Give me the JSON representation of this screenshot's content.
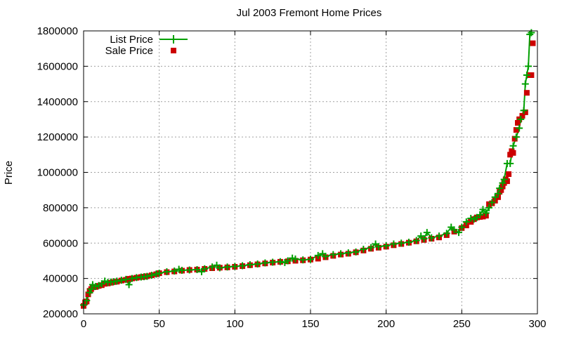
{
  "chart_data": {
    "type": "line",
    "title": "Jul 2003 Fremont Home Prices",
    "xlabel": "",
    "ylabel": "Price",
    "xlim": [
      0,
      300
    ],
    "ylim": [
      200000,
      1800000
    ],
    "xticks": [
      "0",
      "50",
      "100",
      "150",
      "200",
      "250",
      "300"
    ],
    "yticks": [
      "200000",
      "400000",
      "600000",
      "800000",
      "1000000",
      "1200000",
      "1400000",
      "1600000",
      "1800000"
    ],
    "grid": true,
    "legend_position": "top-left",
    "series": [
      {
        "name": "List Price",
        "style": "line with plus markers",
        "color": "#00a000",
        "points": [
          [
            0,
            250000
          ],
          [
            2,
            275000
          ],
          [
            4,
            320000
          ],
          [
            5,
            340000
          ],
          [
            6,
            365000
          ],
          [
            8,
            355000
          ],
          [
            10,
            360000
          ],
          [
            12,
            370000
          ],
          [
            14,
            385000
          ],
          [
            16,
            378000
          ],
          [
            18,
            380000
          ],
          [
            20,
            382000
          ],
          [
            22,
            385000
          ],
          [
            25,
            390000
          ],
          [
            28,
            395000
          ],
          [
            30,
            365000
          ],
          [
            32,
            400000
          ],
          [
            35,
            405000
          ],
          [
            38,
            408000
          ],
          [
            40,
            410000
          ],
          [
            42,
            412000
          ],
          [
            45,
            418000
          ],
          [
            48,
            425000
          ],
          [
            50,
            430000
          ],
          [
            55,
            438000
          ],
          [
            60,
            442000
          ],
          [
            63,
            452000
          ],
          [
            65,
            446000
          ],
          [
            70,
            448000
          ],
          [
            75,
            450000
          ],
          [
            78,
            438000
          ],
          [
            80,
            455000
          ],
          [
            85,
            465000
          ],
          [
            88,
            475000
          ],
          [
            90,
            460000
          ],
          [
            95,
            465000
          ],
          [
            100,
            468000
          ],
          [
            105,
            472000
          ],
          [
            110,
            478000
          ],
          [
            115,
            482000
          ],
          [
            120,
            488000
          ],
          [
            125,
            492000
          ],
          [
            130,
            495000
          ],
          [
            133,
            490000
          ],
          [
            135,
            500000
          ],
          [
            138,
            515000
          ],
          [
            140,
            510000
          ],
          [
            145,
            505000
          ],
          [
            150,
            508000
          ],
          [
            155,
            530000
          ],
          [
            158,
            540000
          ],
          [
            160,
            525000
          ],
          [
            165,
            535000
          ],
          [
            170,
            540000
          ],
          [
            175,
            545000
          ],
          [
            180,
            550000
          ],
          [
            185,
            565000
          ],
          [
            190,
            575000
          ],
          [
            193,
            595000
          ],
          [
            195,
            580000
          ],
          [
            200,
            585000
          ],
          [
            205,
            595000
          ],
          [
            210,
            600000
          ],
          [
            215,
            605000
          ],
          [
            220,
            615000
          ],
          [
            223,
            640000
          ],
          [
            225,
            625000
          ],
          [
            227,
            660000
          ],
          [
            230,
            630000
          ],
          [
            235,
            640000
          ],
          [
            240,
            655000
          ],
          [
            243,
            690000
          ],
          [
            245,
            675000
          ],
          [
            248,
            660000
          ],
          [
            250,
            690000
          ],
          [
            253,
            720000
          ],
          [
            256,
            740000
          ],
          [
            258,
            735000
          ],
          [
            260,
            745000
          ],
          [
            262,
            760000
          ],
          [
            264,
            790000
          ],
          [
            266,
            770000
          ],
          [
            268,
            800000
          ],
          [
            270,
            830000
          ],
          [
            272,
            860000
          ],
          [
            274,
            880000
          ],
          [
            275,
            910000
          ],
          [
            277,
            940000
          ],
          [
            278,
            960000
          ],
          [
            280,
            1050000
          ],
          [
            282,
            1050000
          ],
          [
            284,
            1150000
          ],
          [
            286,
            1200000
          ],
          [
            288,
            1250000
          ],
          [
            289,
            1300000
          ],
          [
            291,
            1350000
          ],
          [
            292,
            1500000
          ],
          [
            293,
            1550000
          ],
          [
            294,
            1600000
          ],
          [
            295,
            1780000
          ],
          [
            296,
            1790000
          ]
        ]
      },
      {
        "name": "Sale Price",
        "style": "square markers",
        "color": "#cc0000",
        "points": [
          [
            0,
            245000
          ],
          [
            1,
            265000
          ],
          [
            2,
            270000
          ],
          [
            3,
            310000
          ],
          [
            4,
            330000
          ],
          [
            5,
            340000
          ],
          [
            6,
            350000
          ],
          [
            8,
            352000
          ],
          [
            10,
            358000
          ],
          [
            12,
            362000
          ],
          [
            14,
            370000
          ],
          [
            16,
            372000
          ],
          [
            18,
            376000
          ],
          [
            20,
            380000
          ],
          [
            22,
            382000
          ],
          [
            25,
            388000
          ],
          [
            28,
            392000
          ],
          [
            30,
            398000
          ],
          [
            32,
            400000
          ],
          [
            35,
            404000
          ],
          [
            38,
            408000
          ],
          [
            40,
            410000
          ],
          [
            42,
            413000
          ],
          [
            45,
            418000
          ],
          [
            48,
            424000
          ],
          [
            50,
            430000
          ],
          [
            55,
            436000
          ],
          [
            60,
            440000
          ],
          [
            65,
            444000
          ],
          [
            70,
            448000
          ],
          [
            75,
            450000
          ],
          [
            80,
            454000
          ],
          [
            85,
            458000
          ],
          [
            90,
            461000
          ],
          [
            95,
            463000
          ],
          [
            100,
            466000
          ],
          [
            105,
            470000
          ],
          [
            110,
            475000
          ],
          [
            115,
            480000
          ],
          [
            120,
            485000
          ],
          [
            125,
            490000
          ],
          [
            130,
            494000
          ],
          [
            135,
            497000
          ],
          [
            140,
            500000
          ],
          [
            145,
            503000
          ],
          [
            150,
            507000
          ],
          [
            155,
            512000
          ],
          [
            160,
            520000
          ],
          [
            165,
            528000
          ],
          [
            170,
            535000
          ],
          [
            175,
            540000
          ],
          [
            180,
            548000
          ],
          [
            185,
            558000
          ],
          [
            190,
            568000
          ],
          [
            195,
            574000
          ],
          [
            200,
            580000
          ],
          [
            205,
            588000
          ],
          [
            210,
            595000
          ],
          [
            215,
            602000
          ],
          [
            220,
            610000
          ],
          [
            225,
            618000
          ],
          [
            230,
            625000
          ],
          [
            235,
            632000
          ],
          [
            240,
            645000
          ],
          [
            245,
            665000
          ],
          [
            250,
            685000
          ],
          [
            253,
            700000
          ],
          [
            256,
            720000
          ],
          [
            258,
            735000
          ],
          [
            260,
            745000
          ],
          [
            262,
            748000
          ],
          [
            264,
            750000
          ],
          [
            266,
            755000
          ],
          [
            268,
            820000
          ],
          [
            270,
            825000
          ],
          [
            272,
            840000
          ],
          [
            274,
            860000
          ],
          [
            275,
            890000
          ],
          [
            276,
            900000
          ],
          [
            277,
            920000
          ],
          [
            278,
            940000
          ],
          [
            279,
            960000
          ],
          [
            280,
            950000
          ],
          [
            281,
            990000
          ],
          [
            282,
            1100000
          ],
          [
            283,
            1120000
          ],
          [
            284,
            1110000
          ],
          [
            285,
            1190000
          ],
          [
            286,
            1240000
          ],
          [
            287,
            1280000
          ],
          [
            288,
            1300000
          ],
          [
            290,
            1320000
          ],
          [
            292,
            1340000
          ],
          [
            293,
            1450000
          ],
          [
            295,
            1550000
          ],
          [
            296,
            1550000
          ],
          [
            297,
            1730000
          ]
        ]
      }
    ]
  }
}
